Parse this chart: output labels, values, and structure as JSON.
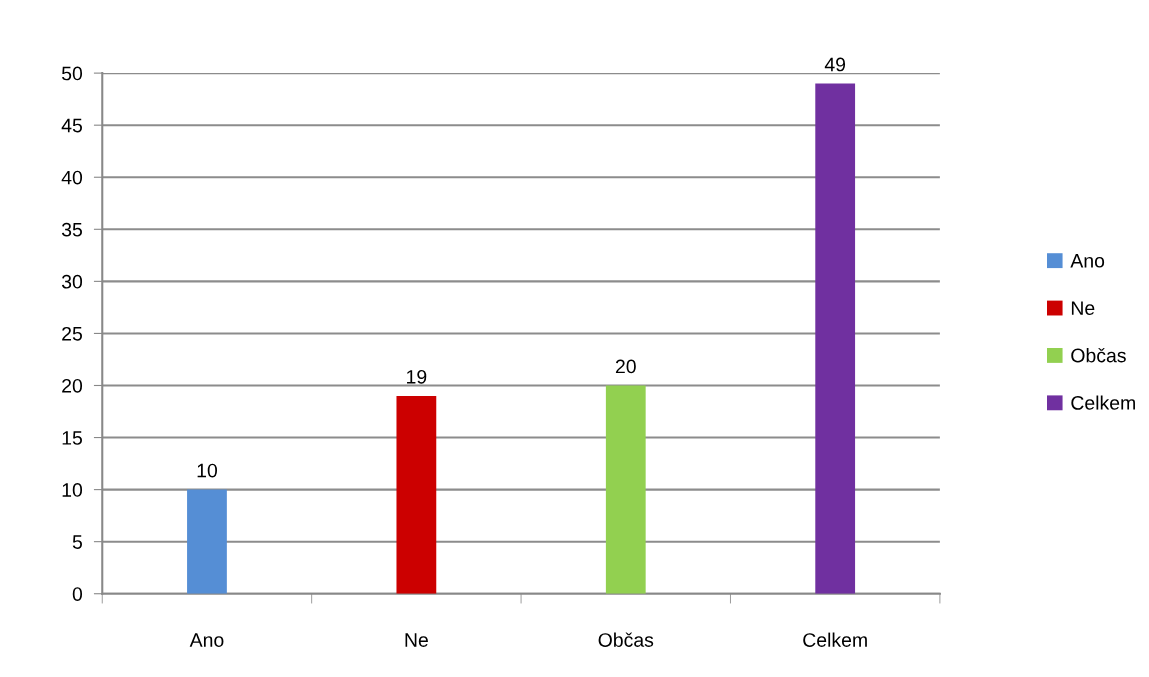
{
  "chart_data": {
    "type": "bar",
    "categories": [
      "Ano",
      "Ne",
      "Občas",
      "Celkem"
    ],
    "series": [
      {
        "name": "Ano",
        "color": "#558ed5",
        "values": [
          10,
          null,
          null,
          null
        ]
      },
      {
        "name": "Ne",
        "color": "#cc0000",
        "values": [
          null,
          19,
          null,
          null
        ]
      },
      {
        "name": "Občas",
        "color": "#92d050",
        "values": [
          null,
          null,
          20,
          null
        ]
      },
      {
        "name": "Celkem",
        "color": "#7030a0",
        "values": [
          null,
          null,
          null,
          49
        ]
      }
    ],
    "ylim": [
      0,
      50
    ],
    "yticks": [
      0,
      5,
      10,
      15,
      20,
      25,
      30,
      35,
      40,
      45,
      50
    ],
    "grid": "y",
    "legend": "right",
    "data_labels": true
  }
}
